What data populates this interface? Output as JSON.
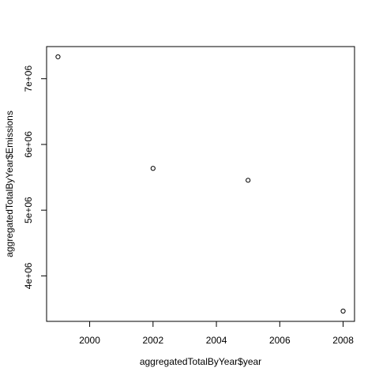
{
  "chart_data": {
    "type": "scatter",
    "title": "",
    "xlabel": "aggregatedTotalByYear$year",
    "ylabel": "aggregatedTotalByYear$Emissions",
    "x": [
      1999,
      2002,
      2005,
      2008
    ],
    "y": [
      7332967,
      5635780,
      5454703,
      3464206
    ],
    "xlim": [
      1998.64,
      2008.36
    ],
    "ylim": [
      3308000,
      7489000
    ],
    "xticks": [
      2000,
      2002,
      2004,
      2006,
      2008
    ],
    "yticks": [
      4000000,
      5000000,
      6000000,
      7000000
    ],
    "xtick_labels": [
      "2000",
      "2002",
      "2004",
      "2006",
      "2008"
    ],
    "ytick_labels": [
      "4e+06",
      "5e+06",
      "6e+06",
      "7e+06"
    ],
    "grid": false,
    "marker": "open-circle",
    "marker_color": "#000000"
  }
}
